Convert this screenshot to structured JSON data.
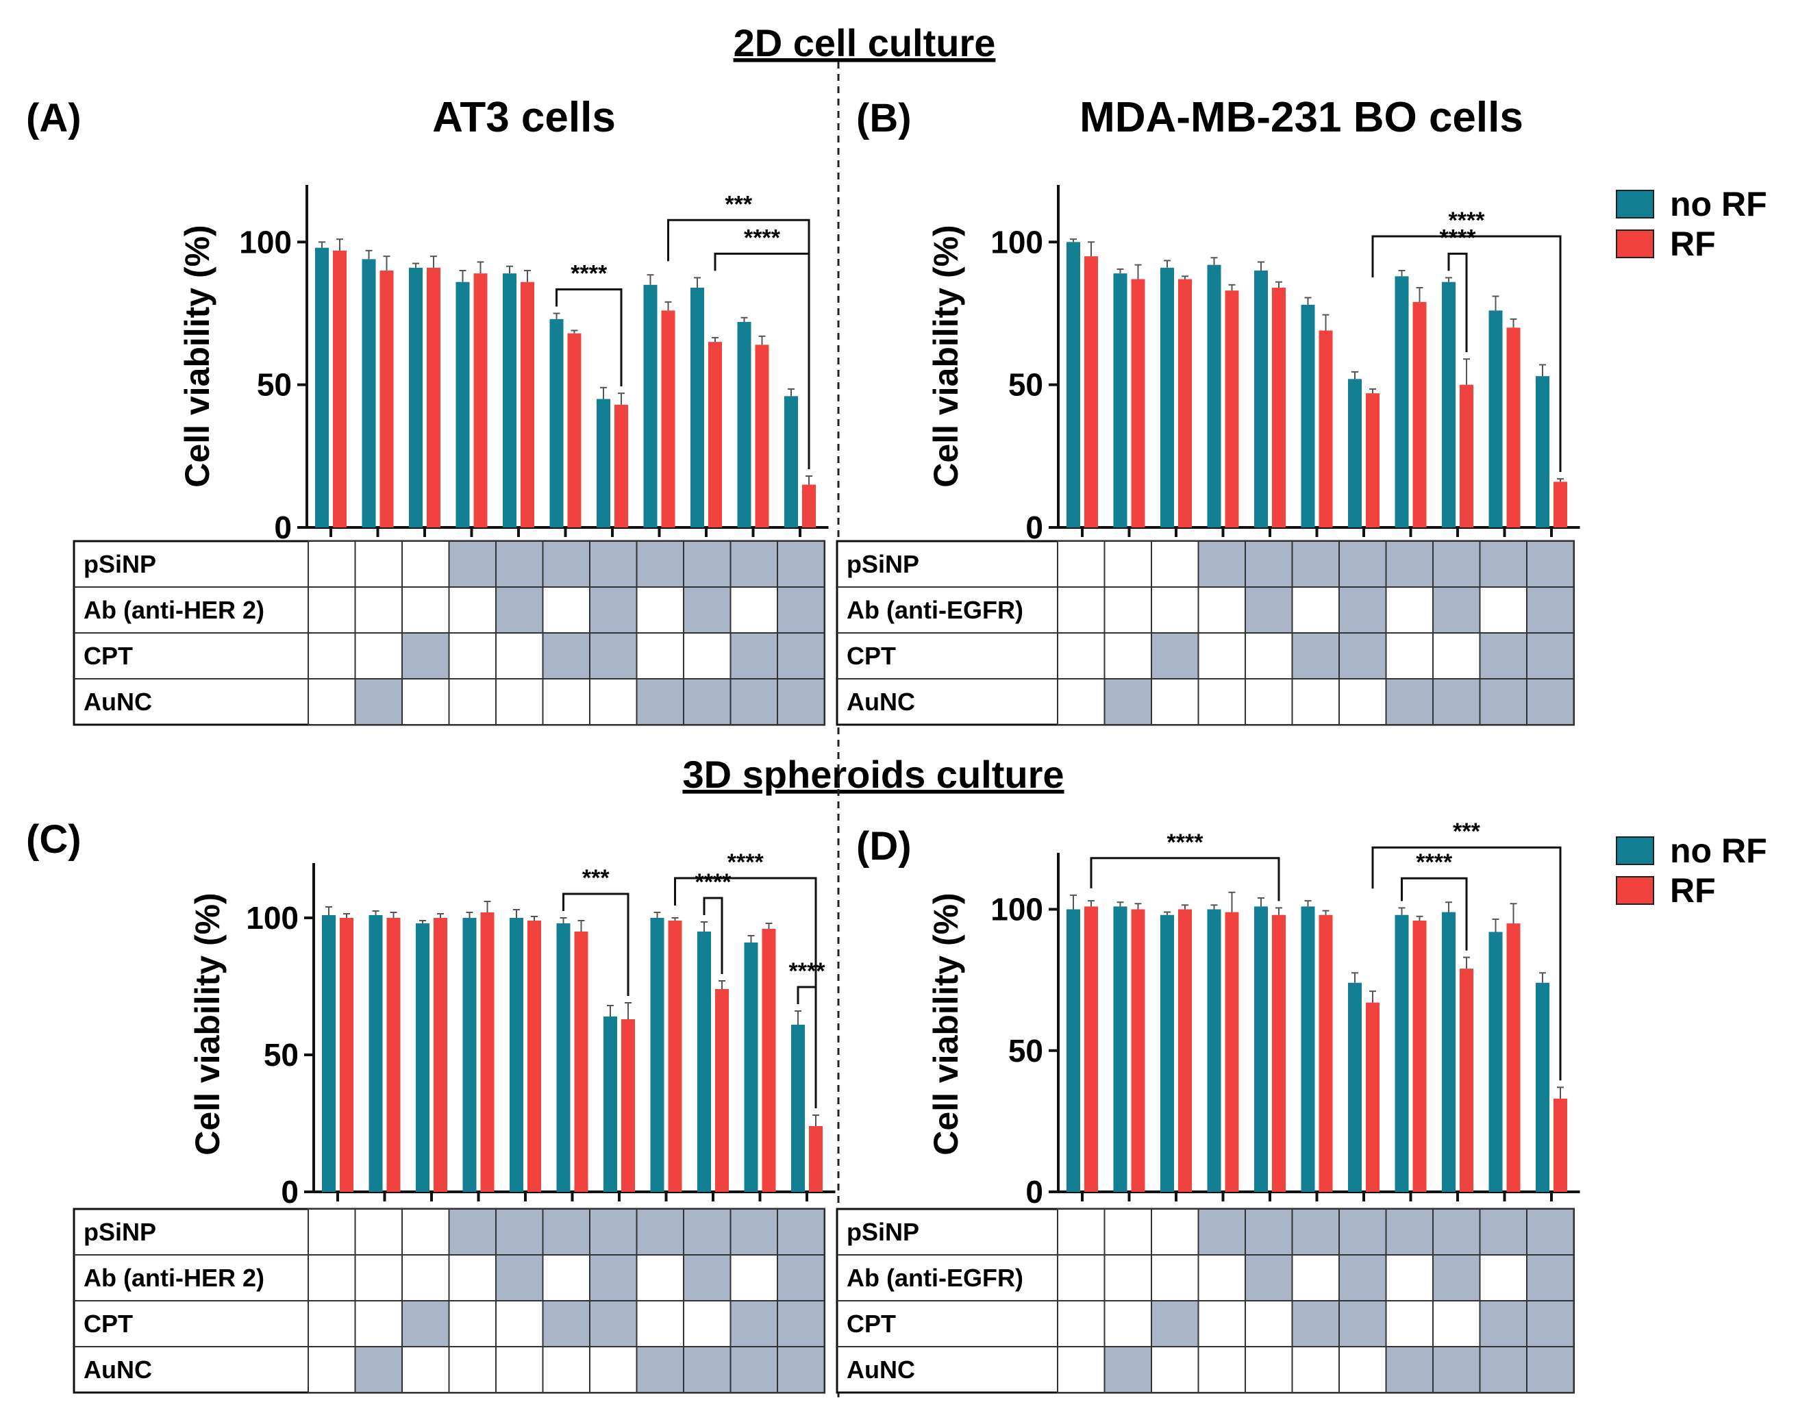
{
  "section_titles": {
    "top": "2D cell culture",
    "bottom": "3D spheroids culture"
  },
  "legend": {
    "items": [
      {
        "label": "no RF",
        "color": "#137f93"
      },
      {
        "label": "RF",
        "color": "#f0433f"
      }
    ]
  },
  "colors": {
    "grid_fill": "#aab6c8",
    "axis": "#111111",
    "noRF": "#137f93",
    "RF": "#f0433f"
  },
  "chart_data": [
    {
      "panel": "(A)",
      "title": "AT3 cells",
      "type": "bar",
      "ylabel": "Cell viability  (%)",
      "ylim": [
        0,
        120
      ],
      "yticks": [
        0,
        50,
        100
      ],
      "series": [
        {
          "name": "no RF",
          "values": [
            98,
            94,
            91,
            86,
            89,
            73,
            45,
            85,
            84,
            72,
            46
          ],
          "errors": [
            2,
            3,
            1.5,
            4,
            2.5,
            2,
            4,
            3.5,
            3.5,
            1.5,
            2.5
          ]
        },
        {
          "name": "RF",
          "values": [
            97,
            90,
            91,
            89,
            86,
            68,
            43,
            76,
            65,
            64,
            15
          ],
          "errors": [
            4,
            5,
            4,
            4,
            4,
            1,
            4,
            3,
            1.5,
            3,
            3
          ]
        }
      ],
      "significance": [
        {
          "label": "****",
          "from": 5,
          "to": 6
        },
        {
          "label": "***",
          "from": 7,
          "to": 10
        },
        {
          "label": "****",
          "from": 8,
          "to": 10
        }
      ],
      "grid": {
        "rows": [
          "pSiNP",
          "Ab (anti-HER 2)",
          "CPT",
          "AuNC"
        ],
        "cells": [
          [
            0,
            0,
            0,
            1,
            1,
            1,
            1,
            1,
            1,
            1,
            1
          ],
          [
            0,
            0,
            0,
            0,
            1,
            0,
            1,
            0,
            1,
            0,
            1
          ],
          [
            0,
            0,
            1,
            0,
            0,
            1,
            1,
            0,
            0,
            1,
            1
          ],
          [
            0,
            1,
            0,
            0,
            0,
            0,
            0,
            1,
            1,
            1,
            1
          ]
        ]
      }
    },
    {
      "panel": "(B)",
      "title": "MDA-MB-231 BO cells",
      "type": "bar",
      "ylabel": "Cell viability  (%)",
      "ylim": [
        0,
        120
      ],
      "yticks": [
        0,
        50,
        100
      ],
      "series": [
        {
          "name": "no RF",
          "values": [
            100,
            89,
            91,
            92,
            90,
            78,
            52,
            88,
            86,
            76,
            53
          ],
          "errors": [
            1,
            1.5,
            2.5,
            2.5,
            3,
            2.5,
            2.5,
            2,
            1.5,
            5,
            4
          ]
        },
        {
          "name": "RF",
          "values": [
            95,
            87,
            87,
            83,
            84,
            69,
            47,
            79,
            50,
            70,
            16
          ],
          "errors": [
            5,
            5,
            1,
            2,
            2,
            5.5,
            1.5,
            5,
            9,
            3,
            1
          ]
        }
      ],
      "significance": [
        {
          "label": "****",
          "from": 6,
          "to": 10
        },
        {
          "label": "****",
          "from": 8,
          "to": 8
        }
      ],
      "grid": {
        "rows": [
          "pSiNP",
          "Ab (anti-EGFR)",
          "CPT",
          "AuNC"
        ],
        "cells": [
          [
            0,
            0,
            0,
            1,
            1,
            1,
            1,
            1,
            1,
            1,
            1
          ],
          [
            0,
            0,
            0,
            0,
            1,
            0,
            1,
            0,
            1,
            0,
            1
          ],
          [
            0,
            0,
            1,
            0,
            0,
            1,
            1,
            0,
            0,
            1,
            1
          ],
          [
            0,
            1,
            0,
            0,
            0,
            0,
            0,
            1,
            1,
            1,
            1
          ]
        ]
      }
    },
    {
      "panel": "(C)",
      "type": "bar",
      "ylabel": "Cell viability  (%)",
      "ylim": [
        0,
        120
      ],
      "yticks": [
        0,
        50,
        100
      ],
      "series": [
        {
          "name": "no RF",
          "values": [
            101,
            101,
            98,
            100,
            100,
            98,
            64,
            100,
            95,
            91,
            61
          ],
          "errors": [
            3,
            1.5,
            1,
            2,
            3,
            2,
            4,
            2,
            3.5,
            2.5,
            5
          ]
        },
        {
          "name": "RF",
          "values": [
            100,
            100,
            100,
            102,
            99,
            95,
            63,
            99,
            74,
            96,
            24
          ],
          "errors": [
            1.5,
            2,
            1.5,
            4,
            1.5,
            4,
            6,
            1,
            3,
            2,
            4
          ]
        }
      ],
      "significance": [
        {
          "label": "***",
          "from": 5,
          "to": 6
        },
        {
          "label": "****",
          "from": 7,
          "to": 10
        },
        {
          "label": "****",
          "from": 8,
          "to": 8
        },
        {
          "label": "****",
          "from": 10,
          "to": 10
        }
      ],
      "grid": {
        "rows": [
          "pSiNP",
          "Ab (anti-HER 2)",
          "CPT",
          "AuNC"
        ],
        "cells": [
          [
            0,
            0,
            0,
            1,
            1,
            1,
            1,
            1,
            1,
            1,
            1
          ],
          [
            0,
            0,
            0,
            0,
            1,
            0,
            1,
            0,
            1,
            0,
            1
          ],
          [
            0,
            0,
            1,
            0,
            0,
            1,
            1,
            0,
            0,
            1,
            1
          ],
          [
            0,
            1,
            0,
            0,
            0,
            0,
            0,
            1,
            1,
            1,
            1
          ]
        ]
      }
    },
    {
      "panel": "(D)",
      "type": "bar",
      "ylabel": "Cell viability  (%)",
      "ylim": [
        0,
        120
      ],
      "yticks": [
        0,
        50,
        100
      ],
      "series": [
        {
          "name": "no RF",
          "values": [
            100,
            101,
            98,
            100,
            101,
            101,
            74,
            98,
            99,
            92,
            74
          ],
          "errors": [
            5,
            1.5,
            1,
            1.5,
            3,
            2,
            3.5,
            2.5,
            3.5,
            4.5,
            3.5
          ]
        },
        {
          "name": "RF",
          "values": [
            101,
            100,
            100,
            99,
            98,
            98,
            67,
            96,
            79,
            95,
            33
          ],
          "errors": [
            2,
            2,
            1.5,
            7,
            2.5,
            1.5,
            4,
            1.5,
            4,
            7,
            4
          ]
        }
      ],
      "significance": [
        {
          "label": "****",
          "from": 0,
          "to": 4
        },
        {
          "label": "***",
          "from": 6,
          "to": 10
        },
        {
          "label": "****",
          "from": 7,
          "to": 8
        }
      ],
      "grid": {
        "rows": [
          "pSiNP",
          "Ab (anti-EGFR)",
          "CPT",
          "AuNC"
        ],
        "cells": [
          [
            0,
            0,
            0,
            1,
            1,
            1,
            1,
            1,
            1,
            1,
            1
          ],
          [
            0,
            0,
            0,
            0,
            1,
            0,
            1,
            0,
            1,
            0,
            1
          ],
          [
            0,
            0,
            1,
            0,
            0,
            1,
            1,
            0,
            0,
            1,
            1
          ],
          [
            0,
            1,
            0,
            0,
            0,
            0,
            0,
            1,
            1,
            1,
            1
          ]
        ]
      }
    }
  ]
}
